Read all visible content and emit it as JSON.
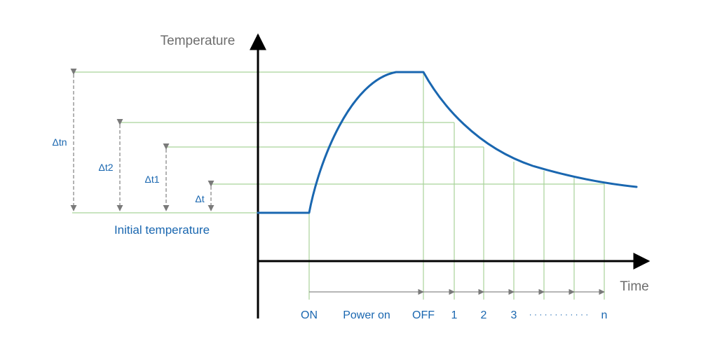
{
  "axes": {
    "y_label": "Temperature",
    "x_label": "Time"
  },
  "initial_label": "Initial temperature",
  "deltas": [
    {
      "label": "Δtn"
    },
    {
      "label": "Δt2"
    },
    {
      "label": "Δt1"
    },
    {
      "label": "Δt"
    }
  ],
  "timeline": {
    "on": "ON",
    "power_on": "Power on",
    "off": "OFF",
    "marks": [
      "1",
      "2",
      "3"
    ],
    "dots": "· · · · · · · · · · · ·",
    "last": "n"
  },
  "colors": {
    "curve": "#1a67b0",
    "guide": "#a9d39a",
    "axis": "#000000",
    "label_blue": "#1a67b0",
    "label_gray": "#6e6e6e",
    "dashed": "#8a8a8a"
  }
}
